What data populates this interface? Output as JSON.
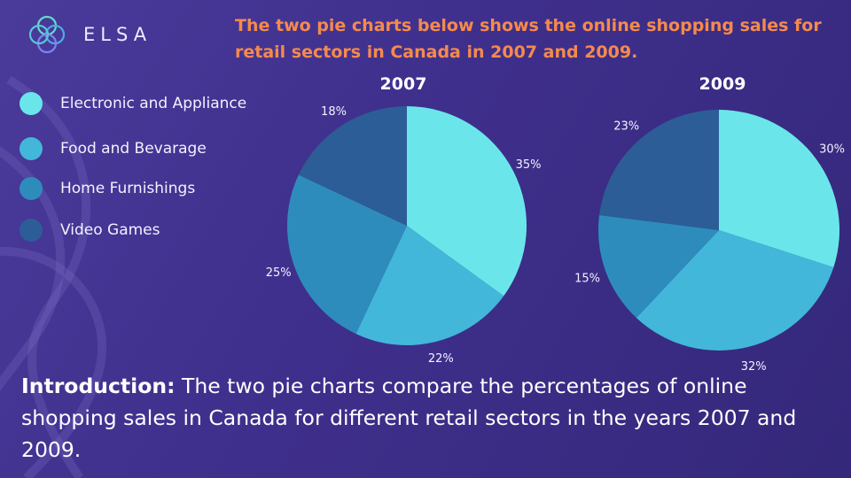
{
  "brand": {
    "name": "ELSA"
  },
  "headline": "The two pie charts below shows the online shopping sales for retail sectors in Canada in 2007 and 2009.",
  "intro": {
    "lead": "Introduction:",
    "body": " The two pie charts compare the percentages of online shopping sales in Canada for different retail sectors in the years 2007 and 2009."
  },
  "chart_data": [
    {
      "type": "pie",
      "title": "2007",
      "categories": [
        "Electronic and Appliance",
        "Food and Bevarage",
        "Home Furnishings",
        "Video Games"
      ],
      "values": [
        35,
        22,
        25,
        18
      ],
      "labels": [
        "35%",
        "22%",
        "25%",
        "18%"
      ],
      "colors": [
        "#6ae6ea",
        "#43b7d9",
        "#2e8cbd",
        "#2c5d97"
      ],
      "legend": "left"
    },
    {
      "type": "pie",
      "title": "2009",
      "categories": [
        "Electronic and Appliance",
        "Food and Bevarage",
        "Home Furnishings",
        "Video Games"
      ],
      "values": [
        30,
        32,
        15,
        23
      ],
      "labels": [
        "30%",
        "32%",
        "15%",
        "23%"
      ],
      "colors": [
        "#6ae6ea",
        "#43b7d9",
        "#2e8cbd",
        "#2c5d97"
      ],
      "legend": "left"
    }
  ]
}
